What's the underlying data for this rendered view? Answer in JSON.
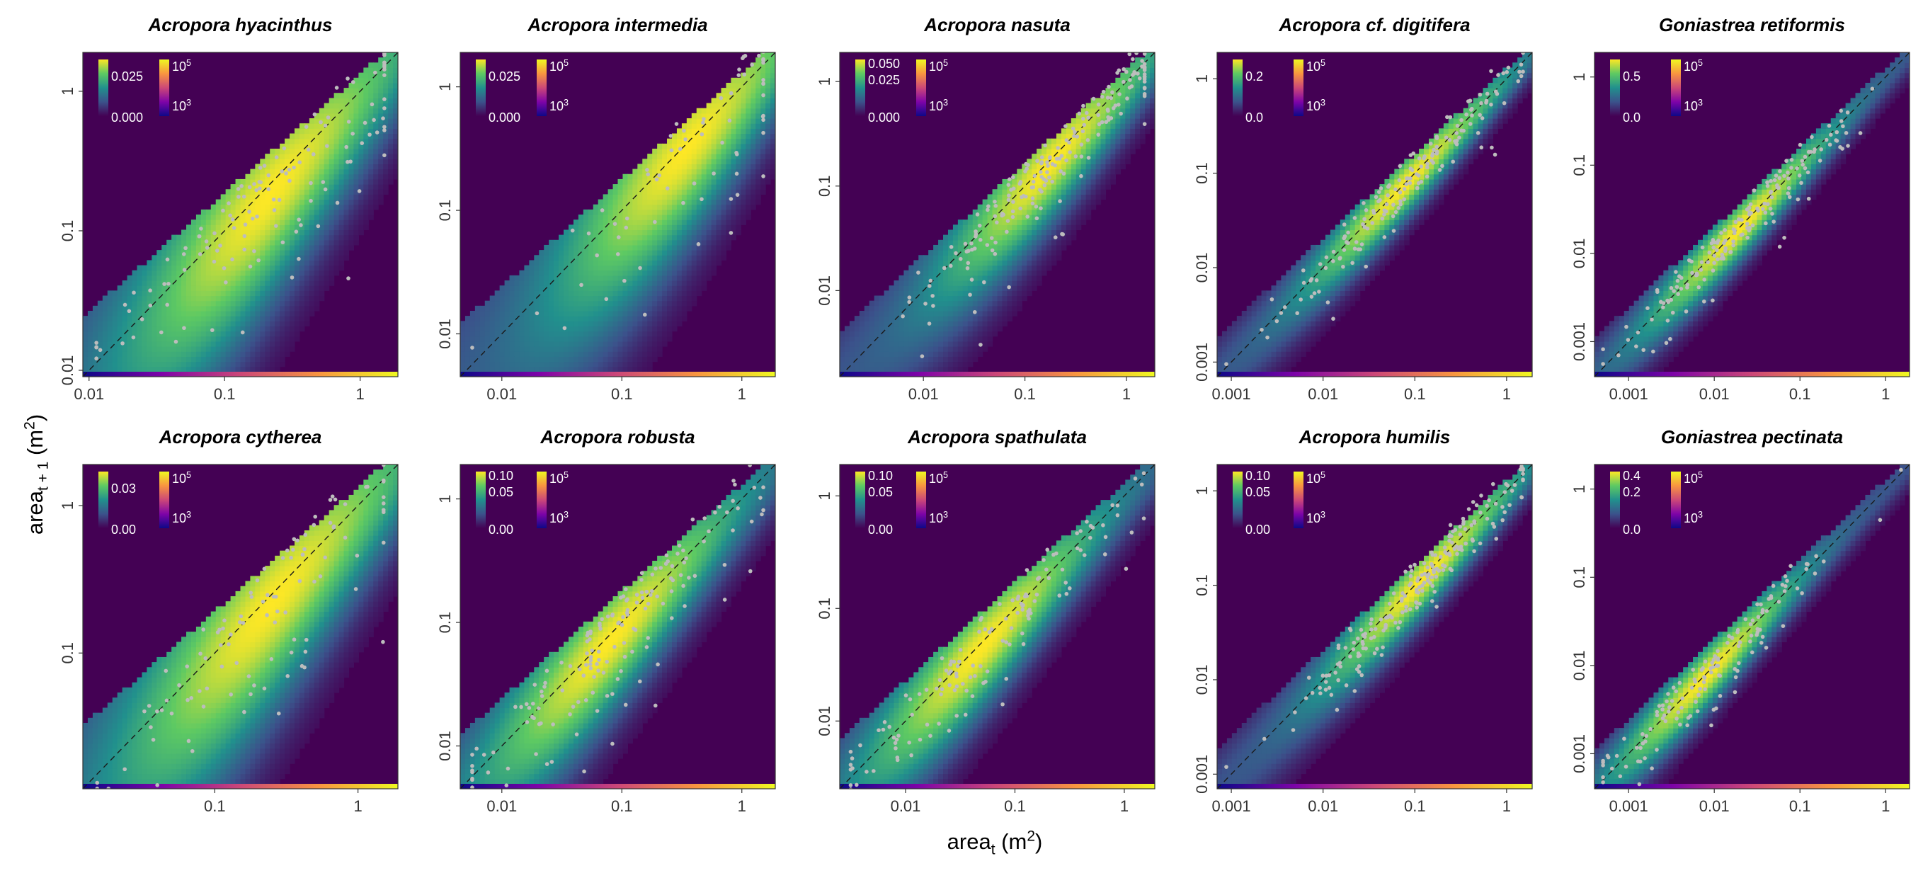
{
  "figure": {
    "ylabel": "area",
    "ylabel_sub": "t + 1",
    "ylabel_unit": "(m",
    "ylabel_unit_sup": "2",
    "ylabel_unit_close": ")",
    "xlabel": "area",
    "xlabel_sub": "t",
    "xlabel_unit": "(m",
    "xlabel_unit_sup": "2",
    "xlabel_unit_close": ")"
  },
  "colors": {
    "background": "#440154",
    "points": "#bdbdbd",
    "diagonal": "#1a1a1a",
    "viridis": [
      "#440154",
      "#3b528b",
      "#21908d",
      "#5dc963",
      "#fde725"
    ],
    "plasma": [
      "#0d0887",
      "#7e03a8",
      "#cc4778",
      "#f89540",
      "#f0f921"
    ]
  },
  "chart_data": [
    {
      "type": "heatmap",
      "title": "Acropora hyacinthus",
      "log_scale": true,
      "xlim": [
        0.009,
        1.9
      ],
      "ylim": [
        0.009,
        1.9
      ],
      "xticks": [
        {
          "v": 0.01,
          "l": "0.01"
        },
        {
          "v": 0.1,
          "l": "0.1"
        },
        {
          "v": 1,
          "l": "1"
        }
      ],
      "yticks": [
        {
          "v": 0.01,
          "l": "0.01"
        },
        {
          "v": 0.1,
          "l": "0.1"
        },
        {
          "v": 1,
          "l": "1"
        }
      ],
      "density_legend": [
        "0.025",
        "0.000"
      ],
      "size_legend": [
        "10^5",
        "10^3"
      ],
      "band": {
        "width": 0.72,
        "offset": -0.18,
        "peak": 0.22
      },
      "point_count": 140,
      "point_spread": 0.45
    },
    {
      "type": "heatmap",
      "title": "Acropora intermedia",
      "log_scale": true,
      "xlim": [
        0.0045,
        1.9
      ],
      "ylim": [
        0.0045,
        1.9
      ],
      "xticks": [
        {
          "v": 0.01,
          "l": "0.01"
        },
        {
          "v": 0.1,
          "l": "0.1"
        },
        {
          "v": 1,
          "l": "1"
        }
      ],
      "yticks": [
        {
          "v": 0.01,
          "l": "0.01"
        },
        {
          "v": 0.1,
          "l": "0.1"
        },
        {
          "v": 1,
          "l": "1"
        }
      ],
      "density_legend": [
        "0.025",
        "0.000"
      ],
      "size_legend": [
        "10^5",
        "10^3"
      ],
      "band": {
        "width": 0.8,
        "offset": -0.12,
        "peak": 0.35
      },
      "point_count": 75,
      "point_spread": 0.45
    },
    {
      "type": "heatmap",
      "title": "Acropora nasuta",
      "log_scale": true,
      "xlim": [
        0.0015,
        1.9
      ],
      "ylim": [
        0.0015,
        1.9
      ],
      "xticks": [
        {
          "v": 0.01,
          "l": "0.01"
        },
        {
          "v": 0.1,
          "l": "0.1"
        },
        {
          "v": 1,
          "l": "1"
        }
      ],
      "yticks": [
        {
          "v": 0.01,
          "l": "0.01"
        },
        {
          "v": 0.1,
          "l": "0.1"
        },
        {
          "v": 1,
          "l": "1"
        }
      ],
      "density_legend": [
        "0.050",
        "0.025",
        "0.000"
      ],
      "size_legend": [
        "10^5",
        "10^3"
      ],
      "band": {
        "width": 0.55,
        "offset": -0.1,
        "peak": 0.18
      },
      "point_count": 200,
      "point_spread": 0.3
    },
    {
      "type": "heatmap",
      "title": "Acropora cf. digitifera",
      "log_scale": true,
      "xlim": [
        0.0007,
        1.9
      ],
      "ylim": [
        0.0007,
        1.9
      ],
      "xticks": [
        {
          "v": 0.001,
          "l": "0.001"
        },
        {
          "v": 0.01,
          "l": "0.01"
        },
        {
          "v": 0.1,
          "l": "0.1"
        },
        {
          "v": 1,
          "l": "1"
        }
      ],
      "yticks": [
        {
          "v": 0.001,
          "l": "0.001"
        },
        {
          "v": 0.01,
          "l": "0.01"
        },
        {
          "v": 0.1,
          "l": "0.1"
        },
        {
          "v": 1,
          "l": "1"
        }
      ],
      "density_legend": [
        "0.2",
        "0.0"
      ],
      "size_legend": [
        "10^5",
        "10^3"
      ],
      "band": {
        "width": 0.3,
        "offset": -0.03,
        "peak": 0.08
      },
      "point_count": 160,
      "point_spread": 0.2
    },
    {
      "type": "heatmap",
      "title": "Goniastrea retiformis",
      "log_scale": true,
      "xlim": [
        0.0004,
        1.9
      ],
      "ylim": [
        0.0004,
        1.9
      ],
      "xticks": [
        {
          "v": 0.001,
          "l": "0.001"
        },
        {
          "v": 0.01,
          "l": "0.01"
        },
        {
          "v": 0.1,
          "l": "0.1"
        },
        {
          "v": 1,
          "l": "1"
        }
      ],
      "yticks": [
        {
          "v": 0.001,
          "l": "0.001"
        },
        {
          "v": 0.01,
          "l": "0.01"
        },
        {
          "v": 0.1,
          "l": "0.1"
        },
        {
          "v": 1,
          "l": "1"
        }
      ],
      "density_legend": [
        "0.5",
        "0.0"
      ],
      "size_legend": [
        "10^5",
        "10^3"
      ],
      "band": {
        "width": 0.28,
        "offset": -0.02,
        "peak": 0.02
      },
      "point_count": 170,
      "point_spread": 0.2
    },
    {
      "type": "heatmap",
      "title": "Acropora cytherea",
      "log_scale": true,
      "xlim": [
        0.012,
        1.9
      ],
      "ylim": [
        0.012,
        1.9
      ],
      "xticks": [
        {
          "v": 0.1,
          "l": "0.1"
        },
        {
          "v": 1,
          "l": "1"
        }
      ],
      "yticks": [
        {
          "v": 0.1,
          "l": "0.1"
        },
        {
          "v": 1,
          "l": "1"
        }
      ],
      "density_legend": [
        "0.03",
        "0.00"
      ],
      "size_legend": [
        "10^5",
        "10^3"
      ],
      "band": {
        "width": 0.7,
        "offset": -0.15,
        "peak": 0.25
      },
      "point_count": 110,
      "point_spread": 0.4
    },
    {
      "type": "heatmap",
      "title": "Acropora robusta",
      "log_scale": true,
      "xlim": [
        0.0045,
        1.9
      ],
      "ylim": [
        0.0045,
        1.9
      ],
      "xticks": [
        {
          "v": 0.01,
          "l": "0.01"
        },
        {
          "v": 0.1,
          "l": "0.1"
        },
        {
          "v": 1,
          "l": "1"
        }
      ],
      "yticks": [
        {
          "v": 0.01,
          "l": "0.01"
        },
        {
          "v": 0.1,
          "l": "0.1"
        },
        {
          "v": 1,
          "l": "1"
        }
      ],
      "density_legend": [
        "0.10",
        "0.05",
        "0.00"
      ],
      "size_legend": [
        "10^5",
        "10^3"
      ],
      "band": {
        "width": 0.5,
        "offset": -0.1,
        "peak": 0.08
      },
      "point_count": 160,
      "point_spread": 0.35
    },
    {
      "type": "heatmap",
      "title": "Acropora spathulata",
      "log_scale": true,
      "xlim": [
        0.0025,
        1.9
      ],
      "ylim": [
        0.0025,
        1.9
      ],
      "xticks": [
        {
          "v": 0.01,
          "l": "0.01"
        },
        {
          "v": 0.1,
          "l": "0.1"
        },
        {
          "v": 1,
          "l": "1"
        }
      ],
      "yticks": [
        {
          "v": 0.01,
          "l": "0.01"
        },
        {
          "v": 0.1,
          "l": "0.1"
        },
        {
          "v": 1,
          "l": "1"
        }
      ],
      "density_legend": [
        "0.10",
        "0.05",
        "0.00"
      ],
      "size_legend": [
        "10^5",
        "10^3"
      ],
      "band": {
        "width": 0.45,
        "offset": -0.08,
        "peak": 0.05
      },
      "point_count": 140,
      "point_spread": 0.3
    },
    {
      "type": "heatmap",
      "title": "Acropora humilis",
      "log_scale": true,
      "xlim": [
        0.0007,
        1.9
      ],
      "ylim": [
        0.0007,
        1.9
      ],
      "xticks": [
        {
          "v": 0.001,
          "l": "0.001"
        },
        {
          "v": 0.01,
          "l": "0.01"
        },
        {
          "v": 0.1,
          "l": "0.1"
        },
        {
          "v": 1,
          "l": "1"
        }
      ],
      "yticks": [
        {
          "v": 0.001,
          "l": "0.001"
        },
        {
          "v": 0.01,
          "l": "0.01"
        },
        {
          "v": 0.1,
          "l": "0.1"
        },
        {
          "v": 1,
          "l": "1"
        }
      ],
      "density_legend": [
        "0.10",
        "0.05",
        "0.00"
      ],
      "size_legend": [
        "10^5",
        "10^3"
      ],
      "band": {
        "width": 0.35,
        "offset": -0.05,
        "peak": 0.12
      },
      "point_count": 200,
      "point_spread": 0.2
    },
    {
      "type": "heatmap",
      "title": "Goniastrea pectinata",
      "log_scale": true,
      "xlim": [
        0.0004,
        1.9
      ],
      "ylim": [
        0.0004,
        1.9
      ],
      "xticks": [
        {
          "v": 0.001,
          "l": "0.001"
        },
        {
          "v": 0.01,
          "l": "0.01"
        },
        {
          "v": 0.1,
          "l": "0.1"
        },
        {
          "v": 1,
          "l": "1"
        }
      ],
      "yticks": [
        {
          "v": 0.001,
          "l": "0.001"
        },
        {
          "v": 0.01,
          "l": "0.01"
        },
        {
          "v": 0.1,
          "l": "0.1"
        },
        {
          "v": 1,
          "l": "1"
        }
      ],
      "density_legend": [
        "0.4",
        "0.2",
        "0.0"
      ],
      "size_legend": [
        "10^5",
        "10^3"
      ],
      "band": {
        "width": 0.28,
        "offset": -0.03,
        "peak": 0.008
      },
      "point_count": 140,
      "point_spread": 0.25
    }
  ]
}
